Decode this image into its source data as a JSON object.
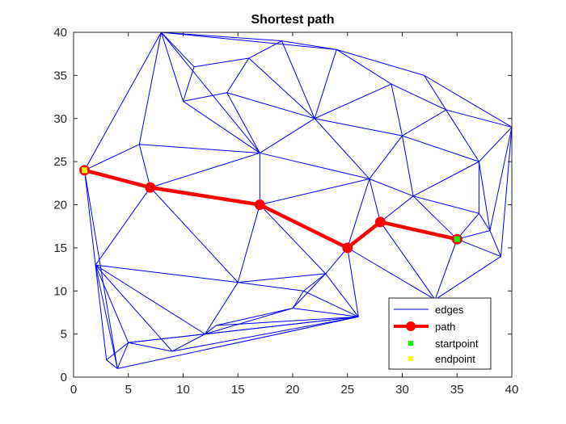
{
  "chart_data": {
    "type": "line",
    "title": "Shortest path",
    "xlabel": "",
    "ylabel": "",
    "xlim": [
      0,
      40
    ],
    "ylim": [
      0,
      40
    ],
    "xticks": [
      0,
      5,
      10,
      15,
      20,
      25,
      30,
      35,
      40
    ],
    "yticks": [
      0,
      5,
      10,
      15,
      20,
      25,
      30,
      35,
      40
    ],
    "grid": false,
    "legend_position": "bottom-right",
    "legend": [
      "edges",
      "path",
      "startpoint",
      "endpoint"
    ],
    "colors": {
      "edges": "#0000ff",
      "path": "#ff0000",
      "startpoint": "#00ff00",
      "endpoint": "#ffff00"
    },
    "nodes": [
      [
        1,
        24
      ],
      [
        7,
        22
      ],
      [
        17,
        20
      ],
      [
        25,
        15
      ],
      [
        28,
        18
      ],
      [
        35,
        16
      ],
      [
        2,
        13
      ],
      [
        3,
        2
      ],
      [
        4,
        1
      ],
      [
        5,
        4
      ],
      [
        9,
        3
      ],
      [
        12,
        5
      ],
      [
        13,
        6
      ],
      [
        15,
        11
      ],
      [
        20,
        8
      ],
      [
        21,
        10
      ],
      [
        23,
        12
      ],
      [
        26,
        7
      ],
      [
        33,
        9
      ],
      [
        39,
        14
      ],
      [
        38,
        17
      ],
      [
        37,
        19
      ],
      [
        37,
        25
      ],
      [
        40,
        29
      ],
      [
        31,
        21
      ],
      [
        30,
        28
      ],
      [
        27,
        23
      ],
      [
        17,
        26
      ],
      [
        6,
        27
      ],
      [
        8,
        40
      ],
      [
        11,
        36
      ],
      [
        10,
        32
      ],
      [
        14,
        33
      ],
      [
        16,
        37
      ],
      [
        19,
        39
      ],
      [
        24,
        38
      ],
      [
        32,
        35
      ],
      [
        34,
        31
      ],
      [
        29,
        34
      ],
      [
        22,
        30
      ]
    ],
    "series": [
      {
        "name": "edges",
        "segments": [
          [
            [
              1,
              24
            ],
            [
              8,
              40
            ]
          ],
          [
            [
              1,
              24
            ],
            [
              6,
              27
            ]
          ],
          [
            [
              1,
              24
            ],
            [
              7,
              22
            ]
          ],
          [
            [
              1,
              24
            ],
            [
              2,
              13
            ]
          ],
          [
            [
              1,
              24
            ],
            [
              4,
              1
            ]
          ],
          [
            [
              6,
              27
            ],
            [
              8,
              40
            ]
          ],
          [
            [
              6,
              27
            ],
            [
              7,
              22
            ]
          ],
          [
            [
              6,
              27
            ],
            [
              17,
              26
            ]
          ],
          [
            [
              7,
              22
            ],
            [
              17,
              26
            ]
          ],
          [
            [
              7,
              22
            ],
            [
              17,
              20
            ]
          ],
          [
            [
              7,
              22
            ],
            [
              2,
              13
            ]
          ],
          [
            [
              7,
              22
            ],
            [
              15,
              11
            ]
          ],
          [
            [
              8,
              40
            ],
            [
              11,
              36
            ]
          ],
          [
            [
              8,
              40
            ],
            [
              10,
              32
            ]
          ],
          [
            [
              8,
              40
            ],
            [
              17,
              26
            ]
          ],
          [
            [
              8,
              40
            ],
            [
              19,
              39
            ]
          ],
          [
            [
              11,
              36
            ],
            [
              10,
              32
            ]
          ],
          [
            [
              11,
              36
            ],
            [
              16,
              37
            ]
          ],
          [
            [
              10,
              32
            ],
            [
              14,
              33
            ]
          ],
          [
            [
              10,
              32
            ],
            [
              17,
              26
            ]
          ],
          [
            [
              14,
              33
            ],
            [
              16,
              37
            ]
          ],
          [
            [
              14,
              33
            ],
            [
              22,
              30
            ]
          ],
          [
            [
              14,
              33
            ],
            [
              17,
              26
            ]
          ],
          [
            [
              16,
              37
            ],
            [
              22,
              30
            ]
          ],
          [
            [
              16,
              37
            ],
            [
              19,
              39
            ]
          ],
          [
            [
              19,
              39
            ],
            [
              22,
              30
            ]
          ],
          [
            [
              19,
              39
            ],
            [
              24,
              38
            ]
          ],
          [
            [
              8,
              40
            ],
            [
              24,
              38
            ]
          ],
          [
            [
              24,
              38
            ],
            [
              22,
              30
            ]
          ],
          [
            [
              24,
              38
            ],
            [
              29,
              34
            ]
          ],
          [
            [
              24,
              38
            ],
            [
              32,
              35
            ]
          ],
          [
            [
              22,
              30
            ],
            [
              29,
              34
            ]
          ],
          [
            [
              22,
              30
            ],
            [
              17,
              26
            ]
          ],
          [
            [
              22,
              30
            ],
            [
              27,
              23
            ]
          ],
          [
            [
              22,
              30
            ],
            [
              30,
              28
            ]
          ],
          [
            [
              29,
              34
            ],
            [
              30,
              28
            ]
          ],
          [
            [
              29,
              34
            ],
            [
              34,
              31
            ]
          ],
          [
            [
              32,
              35
            ],
            [
              34,
              31
            ]
          ],
          [
            [
              32,
              35
            ],
            [
              40,
              29
            ]
          ],
          [
            [
              34,
              31
            ],
            [
              40,
              29
            ]
          ],
          [
            [
              30,
              28
            ],
            [
              34,
              31
            ]
          ],
          [
            [
              30,
              28
            ],
            [
              27,
              23
            ]
          ],
          [
            [
              30,
              28
            ],
            [
              31,
              21
            ]
          ],
          [
            [
              30,
              28
            ],
            [
              37,
              25
            ]
          ],
          [
            [
              34,
              31
            ],
            [
              37,
              25
            ]
          ],
          [
            [
              40,
              29
            ],
            [
              37,
              25
            ]
          ],
          [
            [
              40,
              29
            ],
            [
              38,
              17
            ]
          ],
          [
            [
              40,
              29
            ],
            [
              39,
              14
            ]
          ],
          [
            [
              37,
              25
            ],
            [
              31,
              21
            ]
          ],
          [
            [
              37,
              25
            ],
            [
              37,
              19
            ]
          ],
          [
            [
              37,
              25
            ],
            [
              38,
              17
            ]
          ],
          [
            [
              31,
              21
            ],
            [
              27,
              23
            ]
          ],
          [
            [
              31,
              21
            ],
            [
              28,
              18
            ]
          ],
          [
            [
              31,
              21
            ],
            [
              35,
              16
            ]
          ],
          [
            [
              31,
              21
            ],
            [
              37,
              19
            ]
          ],
          [
            [
              27,
              23
            ],
            [
              28,
              18
            ]
          ],
          [
            [
              27,
              23
            ],
            [
              25,
              15
            ]
          ],
          [
            [
              27,
              23
            ],
            [
              17,
              26
            ]
          ],
          [
            [
              27,
              23
            ],
            [
              17,
              20
            ]
          ],
          [
            [
              17,
              26
            ],
            [
              17,
              20
            ]
          ],
          [
            [
              17,
              20
            ],
            [
              25,
              15
            ]
          ],
          [
            [
              17,
              20
            ],
            [
              15,
              11
            ]
          ],
          [
            [
              17,
              20
            ],
            [
              23,
              12
            ]
          ],
          [
            [
              25,
              15
            ],
            [
              28,
              18
            ]
          ],
          [
            [
              25,
              15
            ],
            [
              26,
              7
            ]
          ],
          [
            [
              25,
              15
            ],
            [
              23,
              12
            ]
          ],
          [
            [
              25,
              15
            ],
            [
              33,
              9
            ]
          ],
          [
            [
              28,
              18
            ],
            [
              35,
              16
            ]
          ],
          [
            [
              28,
              18
            ],
            [
              33,
              9
            ]
          ],
          [
            [
              35,
              16
            ],
            [
              33,
              9
            ]
          ],
          [
            [
              35,
              16
            ],
            [
              37,
              19
            ]
          ],
          [
            [
              35,
              16
            ],
            [
              39,
              14
            ]
          ],
          [
            [
              35,
              16
            ],
            [
              38,
              17
            ]
          ],
          [
            [
              37,
              19
            ],
            [
              38,
              17
            ]
          ],
          [
            [
              38,
              17
            ],
            [
              39,
              14
            ]
          ],
          [
            [
              33,
              9
            ],
            [
              39,
              14
            ]
          ],
          [
            [
              2,
              13
            ],
            [
              15,
              11
            ]
          ],
          [
            [
              2,
              13
            ],
            [
              12,
              5
            ]
          ],
          [
            [
              2,
              13
            ],
            [
              5,
              4
            ]
          ],
          [
            [
              2,
              13
            ],
            [
              3,
              2
            ]
          ],
          [
            [
              2,
              13
            ],
            [
              4,
              1
            ]
          ],
          [
            [
              2,
              13
            ],
            [
              9,
              3
            ]
          ],
          [
            [
              15,
              11
            ],
            [
              23,
              12
            ]
          ],
          [
            [
              15,
              11
            ],
            [
              21,
              10
            ]
          ],
          [
            [
              15,
              11
            ],
            [
              12,
              5
            ]
          ],
          [
            [
              21,
              10
            ],
            [
              23,
              12
            ]
          ],
          [
            [
              21,
              10
            ],
            [
              20,
              8
            ]
          ],
          [
            [
              21,
              10
            ],
            [
              26,
              7
            ]
          ],
          [
            [
              23,
              12
            ],
            [
              20,
              8
            ]
          ],
          [
            [
              23,
              12
            ],
            [
              26,
              7
            ]
          ],
          [
            [
              20,
              8
            ],
            [
              26,
              7
            ]
          ],
          [
            [
              20,
              8
            ],
            [
              13,
              6
            ]
          ],
          [
            [
              20,
              8
            ],
            [
              12,
              5
            ]
          ],
          [
            [
              13,
              6
            ],
            [
              12,
              5
            ]
          ],
          [
            [
              13,
              6
            ],
            [
              26,
              7
            ]
          ],
          [
            [
              12,
              5
            ],
            [
              26,
              7
            ]
          ],
          [
            [
              12,
              5
            ],
            [
              5,
              4
            ]
          ],
          [
            [
              12,
              5
            ],
            [
              9,
              3
            ]
          ],
          [
            [
              9,
              3
            ],
            [
              26,
              7
            ]
          ],
          [
            [
              9,
              3
            ],
            [
              5,
              4
            ]
          ],
          [
            [
              4,
              1
            ],
            [
              26,
              7
            ]
          ],
          [
            [
              4,
              1
            ],
            [
              5,
              4
            ]
          ],
          [
            [
              3,
              2
            ],
            [
              5,
              4
            ]
          ],
          [
            [
              3,
              2
            ],
            [
              4,
              1
            ]
          ],
          [
            [
              5,
              4
            ],
            [
              26,
              7
            ]
          ]
        ]
      },
      {
        "name": "path",
        "x": [
          1,
          7,
          17,
          25,
          28,
          35
        ],
        "y": [
          24,
          22,
          20,
          15,
          18,
          16
        ]
      },
      {
        "name": "startpoint",
        "x": [
          35
        ],
        "y": [
          16
        ]
      },
      {
        "name": "endpoint",
        "x": [
          1
        ],
        "y": [
          24
        ]
      }
    ]
  }
}
